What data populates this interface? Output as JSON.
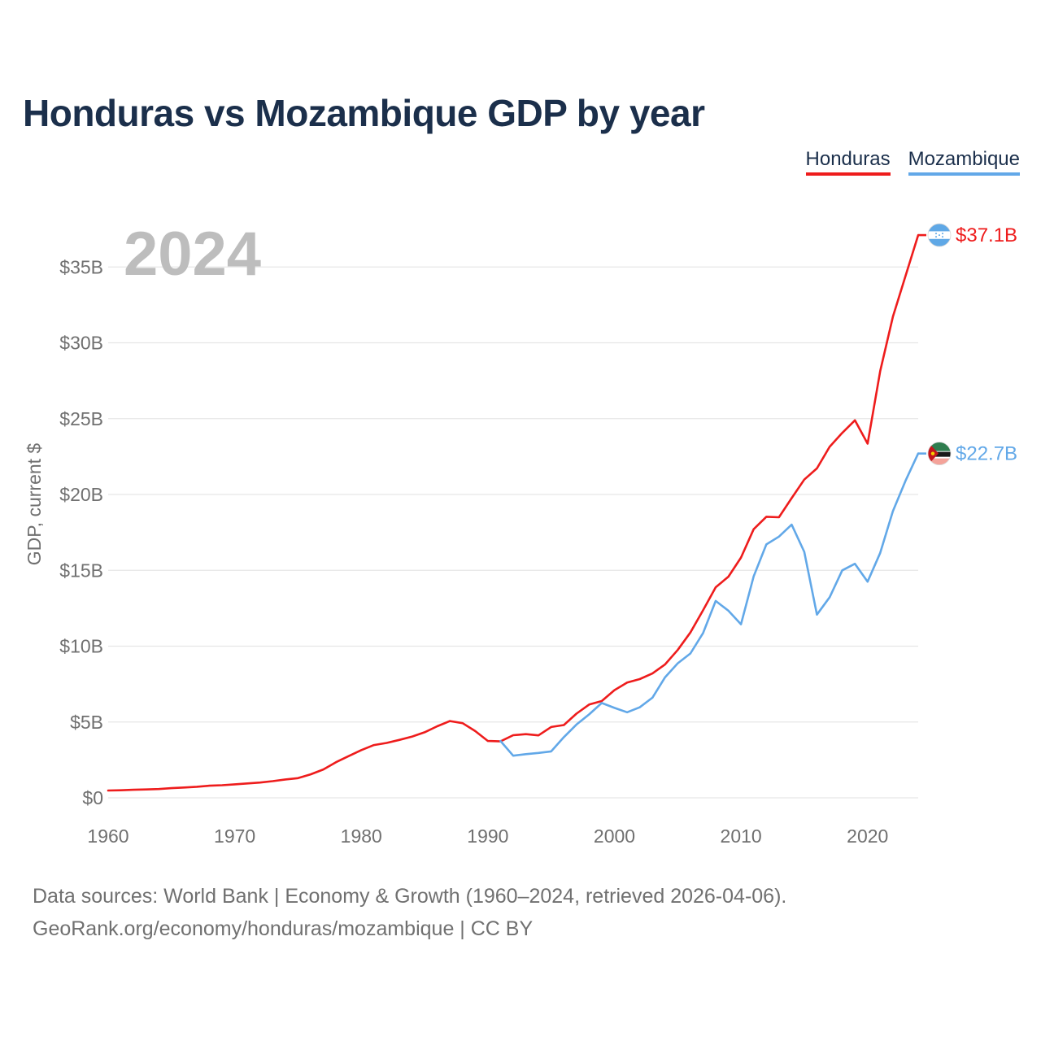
{
  "title": "Honduras vs Mozambique GDP by year",
  "legend": {
    "honduras": "Honduras",
    "mozambique": "Mozambique"
  },
  "year_watermark": "2024",
  "footer": {
    "sources": "Data sources: World Bank | Economy & Growth (1960–2024, retrieved 2026-04-06).",
    "credit": "GeoRank.org/economy/honduras/mozambique | CC BY"
  },
  "colors": {
    "honduras": "#ee1c1c",
    "mozambique": "#62a8e8",
    "title": "#1b2f4b",
    "axis_text": "#707070",
    "grid": "#e6e6e6",
    "watermark": "#bdbdbd"
  },
  "chart_data": {
    "type": "line",
    "title": "Honduras vs Mozambique GDP by year",
    "xlabel": "",
    "ylabel": "GDP, current $",
    "xlim": [
      1960,
      2024
    ],
    "ylim": [
      0,
      37.1
    ],
    "x_ticks": [
      1960,
      1970,
      1980,
      1990,
      2000,
      2010,
      2020
    ],
    "y_ticks": [
      0,
      5,
      10,
      15,
      20,
      25,
      30,
      35
    ],
    "y_tick_labels": [
      "$0",
      "$5B",
      "$10B",
      "$15B",
      "$20B",
      "$25B",
      "$30B",
      "$35B"
    ],
    "grid": true,
    "series": [
      {
        "name": "Honduras",
        "key": "honduras",
        "end_label": "$37.1B",
        "flag": "honduras",
        "x": [
          1960,
          1961,
          1962,
          1963,
          1964,
          1965,
          1966,
          1967,
          1968,
          1969,
          1970,
          1971,
          1972,
          1973,
          1974,
          1975,
          1976,
          1977,
          1978,
          1979,
          1980,
          1981,
          1982,
          1983,
          1984,
          1985,
          1986,
          1987,
          1988,
          1989,
          1990,
          1991,
          1992,
          1993,
          1994,
          1995,
          1996,
          1997,
          1998,
          1999,
          2000,
          2001,
          2002,
          2003,
          2004,
          2005,
          2006,
          2007,
          2008,
          2009,
          2010,
          2011,
          2012,
          2013,
          2014,
          2015,
          2016,
          2017,
          2018,
          2019,
          2020,
          2021,
          2022,
          2023,
          2024
        ],
        "values": [
          0.48,
          0.5,
          0.53,
          0.55,
          0.58,
          0.64,
          0.68,
          0.73,
          0.8,
          0.83,
          0.89,
          0.95,
          1.01,
          1.1,
          1.21,
          1.3,
          1.55,
          1.87,
          2.35,
          2.75,
          3.15,
          3.48,
          3.62,
          3.82,
          4.03,
          4.32,
          4.72,
          5.06,
          4.92,
          4.4,
          3.75,
          3.72,
          4.13,
          4.2,
          4.12,
          4.67,
          4.8,
          5.55,
          6.15,
          6.38,
          7.1,
          7.6,
          7.83,
          8.2,
          8.8,
          9.75,
          10.9,
          12.36,
          13.88,
          14.58,
          15.84,
          17.71,
          18.53,
          18.5,
          19.76,
          20.98,
          21.72,
          23.14,
          24.06,
          24.89,
          23.35,
          28.14,
          31.72,
          34.4,
          37.1
        ]
      },
      {
        "name": "Mozambique",
        "key": "mozambique",
        "end_label": "$22.7B",
        "flag": "mozambique",
        "x": [
          1991,
          1992,
          1993,
          1994,
          1995,
          1996,
          1997,
          1998,
          1999,
          2000,
          2001,
          2002,
          2003,
          2004,
          2005,
          2006,
          2007,
          2008,
          2009,
          2010,
          2011,
          2012,
          2013,
          2014,
          2015,
          2016,
          2017,
          2018,
          2019,
          2020,
          2021,
          2022,
          2023,
          2024
        ],
        "values": [
          3.75,
          2.78,
          2.88,
          2.96,
          3.06,
          4.0,
          4.83,
          5.5,
          6.25,
          5.93,
          5.64,
          5.97,
          6.6,
          7.95,
          8.87,
          9.52,
          10.85,
          12.98,
          12.34,
          11.44,
          14.6,
          16.71,
          17.22,
          18.01,
          16.22,
          12.08,
          13.22,
          15.0,
          15.43,
          14.25,
          16.15,
          18.9,
          20.9,
          22.7
        ]
      }
    ]
  }
}
